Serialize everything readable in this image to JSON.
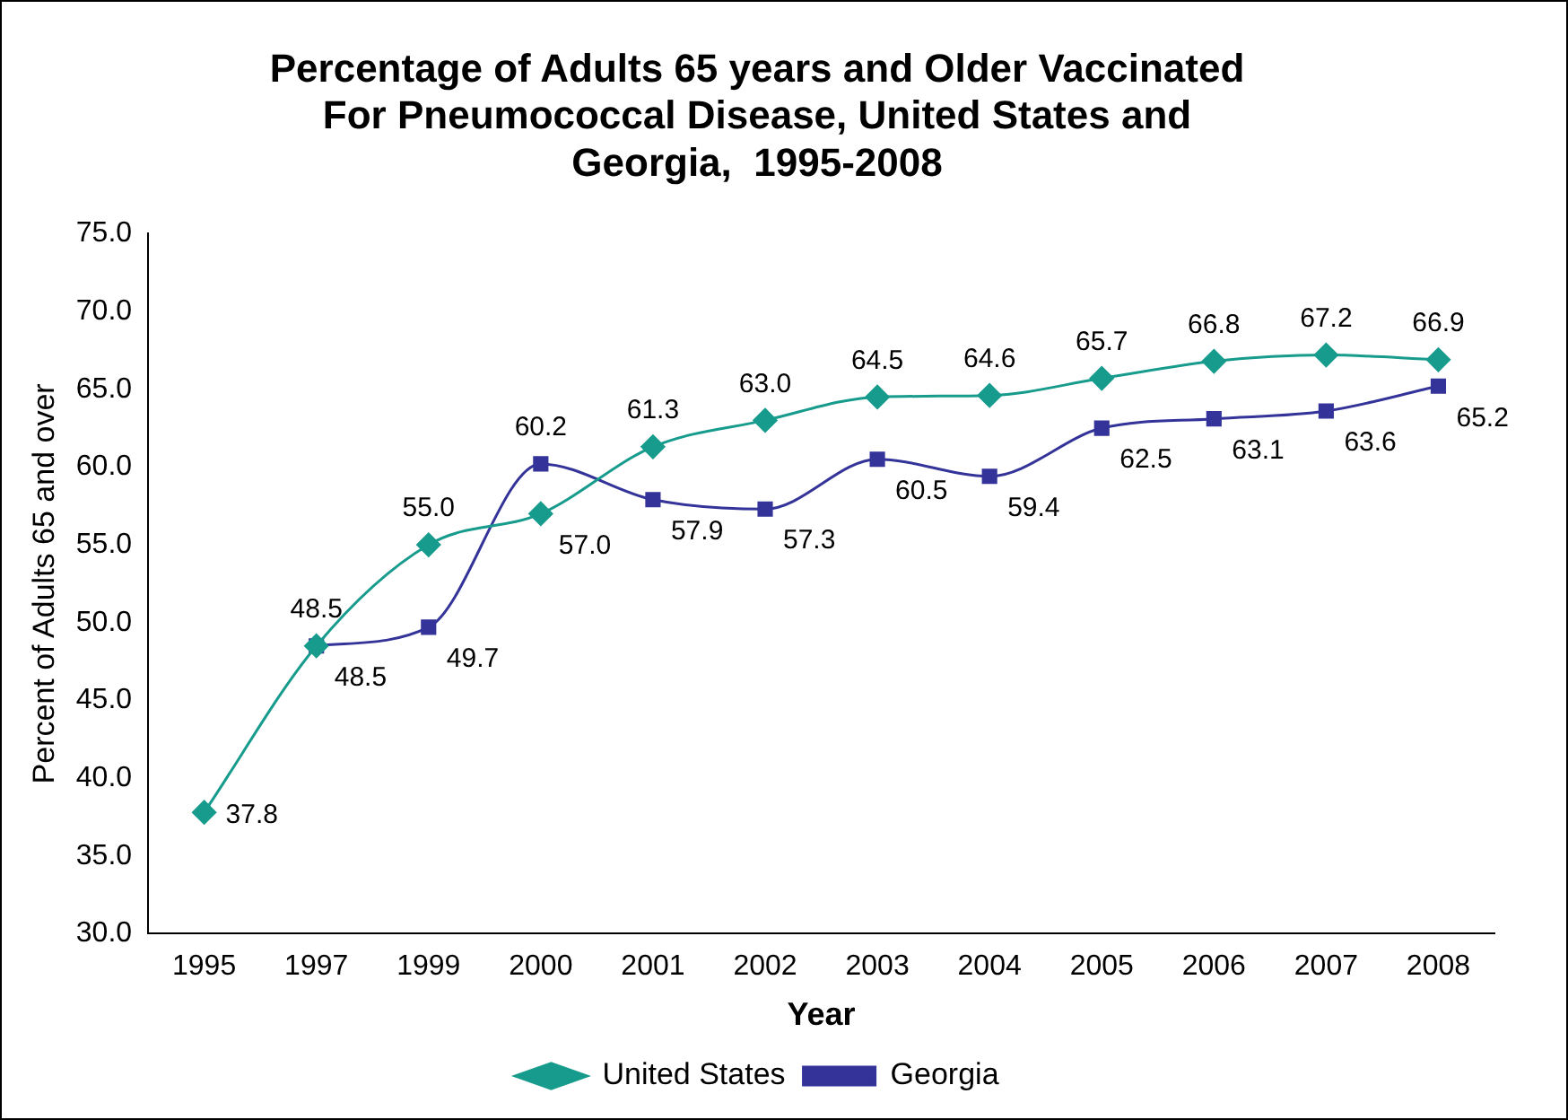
{
  "chart_data": {
    "type": "line",
    "title": "Percentage of Adults 65 years and Older Vaccinated\nFor Pneumococcal Disease, United States and\nGeorgia,  1995-2008",
    "xlabel": "Year",
    "ylabel": "Percent of Adults 65 and over",
    "categories": [
      "1995",
      "1997",
      "1999",
      "2000",
      "2001",
      "2002",
      "2003",
      "2004",
      "2005",
      "2006",
      "2007",
      "2008"
    ],
    "series": [
      {
        "name": "United States",
        "color": "#169b8c",
        "marker": "diamond",
        "values": [
          37.8,
          48.5,
          55.0,
          57.0,
          61.3,
          63.0,
          64.5,
          64.6,
          65.7,
          66.8,
          67.2,
          66.9
        ],
        "value_labels": [
          "37.8",
          "48.5",
          "55.0",
          "57.0",
          "61.3",
          "63.0",
          "64.5",
          "64.6",
          "65.7",
          "66.8",
          "67.2",
          "66.9"
        ]
      },
      {
        "name": "Georgia",
        "color": "#333399",
        "marker": "square",
        "values": [
          null,
          48.5,
          49.7,
          60.2,
          57.9,
          57.3,
          60.5,
          59.4,
          62.5,
          63.1,
          63.6,
          65.2
        ],
        "value_labels": [
          null,
          "48.5",
          "49.7",
          "60.2",
          "57.9",
          "57.3",
          "60.5",
          "59.4",
          "62.5",
          "63.1",
          "63.6",
          "65.2"
        ]
      }
    ],
    "ylim": [
      30,
      75
    ],
    "yticks": [
      {
        "value": 30,
        "label": "30.0"
      },
      {
        "value": 35,
        "label": "35.0"
      },
      {
        "value": 40,
        "label": "40.0"
      },
      {
        "value": 45,
        "label": "45.0"
      },
      {
        "value": 50,
        "label": "50.0"
      },
      {
        "value": 55,
        "label": "55.0"
      },
      {
        "value": 60,
        "label": "60.0"
      },
      {
        "value": 65,
        "label": "65.0"
      },
      {
        "value": 70,
        "label": "70.0"
      },
      {
        "value": 75,
        "label": "75.0"
      }
    ],
    "grid": false,
    "legend": "bottom"
  }
}
